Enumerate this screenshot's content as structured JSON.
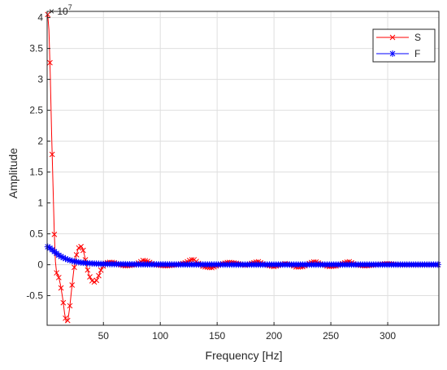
{
  "chart_data": {
    "type": "line",
    "title": "",
    "xlabel": "Frequency [Hz]",
    "ylabel": "Amplitude",
    "exponent_label": "× 10",
    "exponent_power": "7",
    "xlim": [
      0.5,
      345
    ],
    "ylim": [
      -0.98,
      4.1
    ],
    "xticks": [
      50,
      100,
      150,
      200,
      250,
      300
    ],
    "xtick_labels": [
      "50",
      "100",
      "150",
      "200",
      "250",
      "300"
    ],
    "yticks": [
      -0.5,
      0,
      0.5,
      1,
      1.5,
      2,
      2.5,
      3,
      3.5,
      4
    ],
    "ytick_labels": [
      "-0.5",
      "0",
      "0.5",
      "1",
      "1.5",
      "2",
      "2.5",
      "3",
      "3.5",
      "4"
    ],
    "grid": true,
    "legend_position": "top-right",
    "series": [
      {
        "name": "S",
        "color": "#ff0000",
        "marker": "x",
        "x": [
          1.0,
          2.1,
          3.3,
          4.4,
          5.7,
          6.7,
          7.8,
          8.9,
          10.4,
          12.3,
          14.2,
          15.8,
          17.2,
          18.7,
          20.3,
          22.0,
          23.9,
          25.8,
          27.7,
          29.6,
          31.5,
          33.4,
          35.2,
          37.0,
          39.0,
          41.0,
          43.0,
          45.0,
          47.0,
          49.0,
          52.0,
          56.0,
          60.0,
          64.0,
          70.0,
          78.0,
          85.0,
          88.0,
          95.0,
          105.0,
          115.0,
          122.0,
          127.0,
          130.0,
          133.0,
          138.0,
          145.0,
          152.0,
          160.0,
          168.0,
          175.0,
          180.0,
          186.0,
          192.0,
          200.0,
          210.0,
          215.0,
          220.0,
          226.0,
          232.0,
          236.0,
          240.0,
          248.0,
          255.0,
          262.0,
          266.0,
          272.0,
          280.0,
          290.0,
          300.0,
          310.0,
          320.0,
          330.0,
          340.0,
          345.0
        ],
        "y": [
          4.05,
          3.8,
          3.05,
          2.12,
          1.25,
          0.56,
          0.05,
          -0.15,
          -0.18,
          -0.33,
          -0.55,
          -0.78,
          -0.93,
          -0.9,
          -0.7,
          -0.4,
          -0.1,
          0.12,
          0.26,
          0.3,
          0.28,
          0.15,
          -0.02,
          -0.15,
          -0.24,
          -0.28,
          -0.28,
          -0.22,
          -0.12,
          -0.04,
          0.03,
          0.04,
          0.03,
          0.0,
          -0.02,
          0.0,
          0.07,
          0.06,
          0.0,
          -0.02,
          0.0,
          0.03,
          0.08,
          0.08,
          0.03,
          -0.03,
          -0.05,
          0.0,
          0.04,
          0.02,
          -0.01,
          0.02,
          0.05,
          0.0,
          -0.03,
          0.02,
          0.0,
          -0.04,
          -0.03,
          0.03,
          0.05,
          0.02,
          -0.03,
          -0.02,
          0.03,
          0.05,
          0.0,
          -0.02,
          0.0,
          0.02,
          0.0,
          0.0,
          0.0,
          0.0,
          0.0
        ]
      },
      {
        "name": "F",
        "color": "#0000ff",
        "marker": "*",
        "x": [
          1,
          3,
          5,
          7,
          9,
          11,
          13,
          15,
          17,
          19,
          21,
          23,
          25,
          27,
          30,
          33,
          36,
          40,
          45,
          50,
          60,
          70,
          80,
          100,
          120,
          150,
          200,
          250,
          300,
          345
        ],
        "y": [
          0.29,
          0.27,
          0.24,
          0.21,
          0.18,
          0.15,
          0.13,
          0.11,
          0.095,
          0.08,
          0.07,
          0.06,
          0.05,
          0.045,
          0.035,
          0.03,
          0.025,
          0.02,
          0.015,
          0.012,
          0.01,
          0.008,
          0.006,
          0.005,
          0.004,
          0.003,
          0.002,
          0.002,
          0.002,
          0.002
        ]
      }
    ]
  }
}
